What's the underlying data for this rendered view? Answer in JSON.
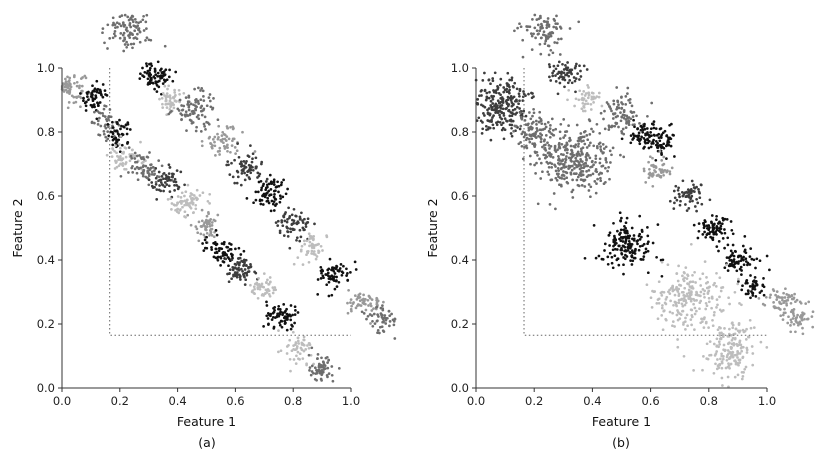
{
  "chart_data": [
    {
      "type": "scatter",
      "caption": "(a)",
      "xlabel": "Feature 1",
      "ylabel": "Feature 2",
      "xlim": [
        0,
        1.0
      ],
      "ylim": [
        0,
        1.0
      ],
      "x_ticks": [
        "0.0",
        "0.2",
        "0.4",
        "0.6",
        "0.8",
        "1.0"
      ],
      "y_ticks": [
        "0.0",
        "0.2",
        "0.4",
        "0.6",
        "0.8",
        "1.0"
      ],
      "grid": false,
      "reference_box": {
        "x0": 0.165,
        "y0": 0.165,
        "x1": 1.0,
        "y1": 1.0
      },
      "colors": [
        "#111111",
        "#3d3d3d",
        "#6e6e6e",
        "#999999",
        "#bdbdbd"
      ],
      "clusters": [
        {
          "x": 0.02,
          "y": 0.94,
          "sx": 0.04,
          "sy": 0.03,
          "c": 3,
          "n": 90
        },
        {
          "x": 0.11,
          "y": 0.91,
          "sx": 0.03,
          "sy": 0.03,
          "c": 0,
          "n": 55
        },
        {
          "x": 0.15,
          "y": 0.83,
          "sx": 0.03,
          "sy": 0.03,
          "c": 2,
          "n": 45
        },
        {
          "x": 0.2,
          "y": 0.79,
          "sx": 0.03,
          "sy": 0.03,
          "c": 0,
          "n": 50
        },
        {
          "x": 0.22,
          "y": 0.72,
          "sx": 0.04,
          "sy": 0.03,
          "c": 4,
          "n": 60
        },
        {
          "x": 0.29,
          "y": 0.69,
          "sx": 0.04,
          "sy": 0.03,
          "c": 2,
          "n": 70
        },
        {
          "x": 0.36,
          "y": 0.64,
          "sx": 0.04,
          "sy": 0.03,
          "c": 1,
          "n": 60
        },
        {
          "x": 0.43,
          "y": 0.58,
          "sx": 0.04,
          "sy": 0.03,
          "c": 4,
          "n": 70
        },
        {
          "x": 0.5,
          "y": 0.51,
          "sx": 0.03,
          "sy": 0.03,
          "c": 3,
          "n": 55
        },
        {
          "x": 0.55,
          "y": 0.43,
          "sx": 0.04,
          "sy": 0.03,
          "c": 0,
          "n": 70
        },
        {
          "x": 0.62,
          "y": 0.37,
          "sx": 0.04,
          "sy": 0.03,
          "c": 1,
          "n": 70
        },
        {
          "x": 0.7,
          "y": 0.31,
          "sx": 0.03,
          "sy": 0.02,
          "c": 4,
          "n": 50
        },
        {
          "x": 0.76,
          "y": 0.22,
          "sx": 0.04,
          "sy": 0.03,
          "c": 0,
          "n": 70
        },
        {
          "x": 0.82,
          "y": 0.12,
          "sx": 0.03,
          "sy": 0.03,
          "c": 4,
          "n": 55
        },
        {
          "x": 0.9,
          "y": 0.06,
          "sx": 0.03,
          "sy": 0.03,
          "c": 2,
          "n": 60
        },
        {
          "x": 0.23,
          "y": 1.12,
          "sx": 0.05,
          "sy": 0.04,
          "c": 2,
          "n": 100
        },
        {
          "x": 0.32,
          "y": 0.98,
          "sx": 0.04,
          "sy": 0.03,
          "c": 0,
          "n": 75
        },
        {
          "x": 0.38,
          "y": 0.9,
          "sx": 0.03,
          "sy": 0.03,
          "c": 4,
          "n": 50
        },
        {
          "x": 0.46,
          "y": 0.87,
          "sx": 0.05,
          "sy": 0.04,
          "c": 2,
          "n": 90
        },
        {
          "x": 0.56,
          "y": 0.77,
          "sx": 0.04,
          "sy": 0.03,
          "c": 3,
          "n": 60
        },
        {
          "x": 0.64,
          "y": 0.69,
          "sx": 0.04,
          "sy": 0.03,
          "c": 1,
          "n": 70
        },
        {
          "x": 0.72,
          "y": 0.61,
          "sx": 0.04,
          "sy": 0.03,
          "c": 0,
          "n": 75
        },
        {
          "x": 0.8,
          "y": 0.51,
          "sx": 0.04,
          "sy": 0.03,
          "c": 1,
          "n": 70
        },
        {
          "x": 0.87,
          "y": 0.44,
          "sx": 0.03,
          "sy": 0.03,
          "c": 4,
          "n": 50
        },
        {
          "x": 0.94,
          "y": 0.35,
          "sx": 0.04,
          "sy": 0.03,
          "c": 0,
          "n": 70
        },
        {
          "x": 1.05,
          "y": 0.27,
          "sx": 0.04,
          "sy": 0.03,
          "c": 3,
          "n": 55
        },
        {
          "x": 1.11,
          "y": 0.22,
          "sx": 0.04,
          "sy": 0.03,
          "c": 2,
          "n": 55
        }
      ]
    },
    {
      "type": "scatter",
      "caption": "(b)",
      "xlabel": "Feature 1",
      "ylabel": "Feature 2",
      "xlim": [
        0,
        1.0
      ],
      "ylim": [
        0,
        1.0
      ],
      "x_ticks": [
        "0.0",
        "0.2",
        "0.4",
        "0.6",
        "0.8",
        "1.0"
      ],
      "y_ticks": [
        "0.0",
        "0.2",
        "0.4",
        "0.6",
        "0.8",
        "1.0"
      ],
      "grid": false,
      "reference_box": {
        "x0": 0.165,
        "y0": 0.165,
        "x1": 1.0,
        "y1": 1.0
      },
      "colors": [
        "#111111",
        "#3d3d3d",
        "#6e6e6e",
        "#999999",
        "#bdbdbd"
      ],
      "clusters": [
        {
          "x": 0.09,
          "y": 0.88,
          "sx": 0.06,
          "sy": 0.06,
          "c": 1,
          "n": 240
        },
        {
          "x": 0.23,
          "y": 1.12,
          "sx": 0.05,
          "sy": 0.04,
          "c": 2,
          "n": 95
        },
        {
          "x": 0.31,
          "y": 0.98,
          "sx": 0.04,
          "sy": 0.03,
          "c": 1,
          "n": 70
        },
        {
          "x": 0.38,
          "y": 0.9,
          "sx": 0.03,
          "sy": 0.03,
          "c": 4,
          "n": 45
        },
        {
          "x": 0.33,
          "y": 0.71,
          "sx": 0.09,
          "sy": 0.07,
          "c": 2,
          "n": 330
        },
        {
          "x": 0.2,
          "y": 0.8,
          "sx": 0.05,
          "sy": 0.04,
          "c": 2,
          "n": 100
        },
        {
          "x": 0.5,
          "y": 0.86,
          "sx": 0.05,
          "sy": 0.04,
          "c": 2,
          "n": 90
        },
        {
          "x": 0.58,
          "y": 0.79,
          "sx": 0.04,
          "sy": 0.03,
          "c": 0,
          "n": 70
        },
        {
          "x": 0.64,
          "y": 0.77,
          "sx": 0.03,
          "sy": 0.03,
          "c": 0,
          "n": 50
        },
        {
          "x": 0.62,
          "y": 0.68,
          "sx": 0.04,
          "sy": 0.03,
          "c": 3,
          "n": 50
        },
        {
          "x": 0.73,
          "y": 0.6,
          "sx": 0.04,
          "sy": 0.03,
          "c": 1,
          "n": 60
        },
        {
          "x": 0.82,
          "y": 0.5,
          "sx": 0.04,
          "sy": 0.03,
          "c": 0,
          "n": 75
        },
        {
          "x": 0.9,
          "y": 0.4,
          "sx": 0.04,
          "sy": 0.03,
          "c": 0,
          "n": 70
        },
        {
          "x": 0.95,
          "y": 0.32,
          "sx": 0.03,
          "sy": 0.02,
          "c": 0,
          "n": 45
        },
        {
          "x": 0.52,
          "y": 0.45,
          "sx": 0.06,
          "sy": 0.05,
          "c": 0,
          "n": 160
        },
        {
          "x": 0.74,
          "y": 0.28,
          "sx": 0.08,
          "sy": 0.07,
          "c": 4,
          "n": 230
        },
        {
          "x": 0.88,
          "y": 0.12,
          "sx": 0.06,
          "sy": 0.06,
          "c": 4,
          "n": 170
        },
        {
          "x": 1.05,
          "y": 0.27,
          "sx": 0.04,
          "sy": 0.03,
          "c": 3,
          "n": 55
        },
        {
          "x": 1.11,
          "y": 0.22,
          "sx": 0.04,
          "sy": 0.03,
          "c": 3,
          "n": 55
        }
      ]
    }
  ]
}
